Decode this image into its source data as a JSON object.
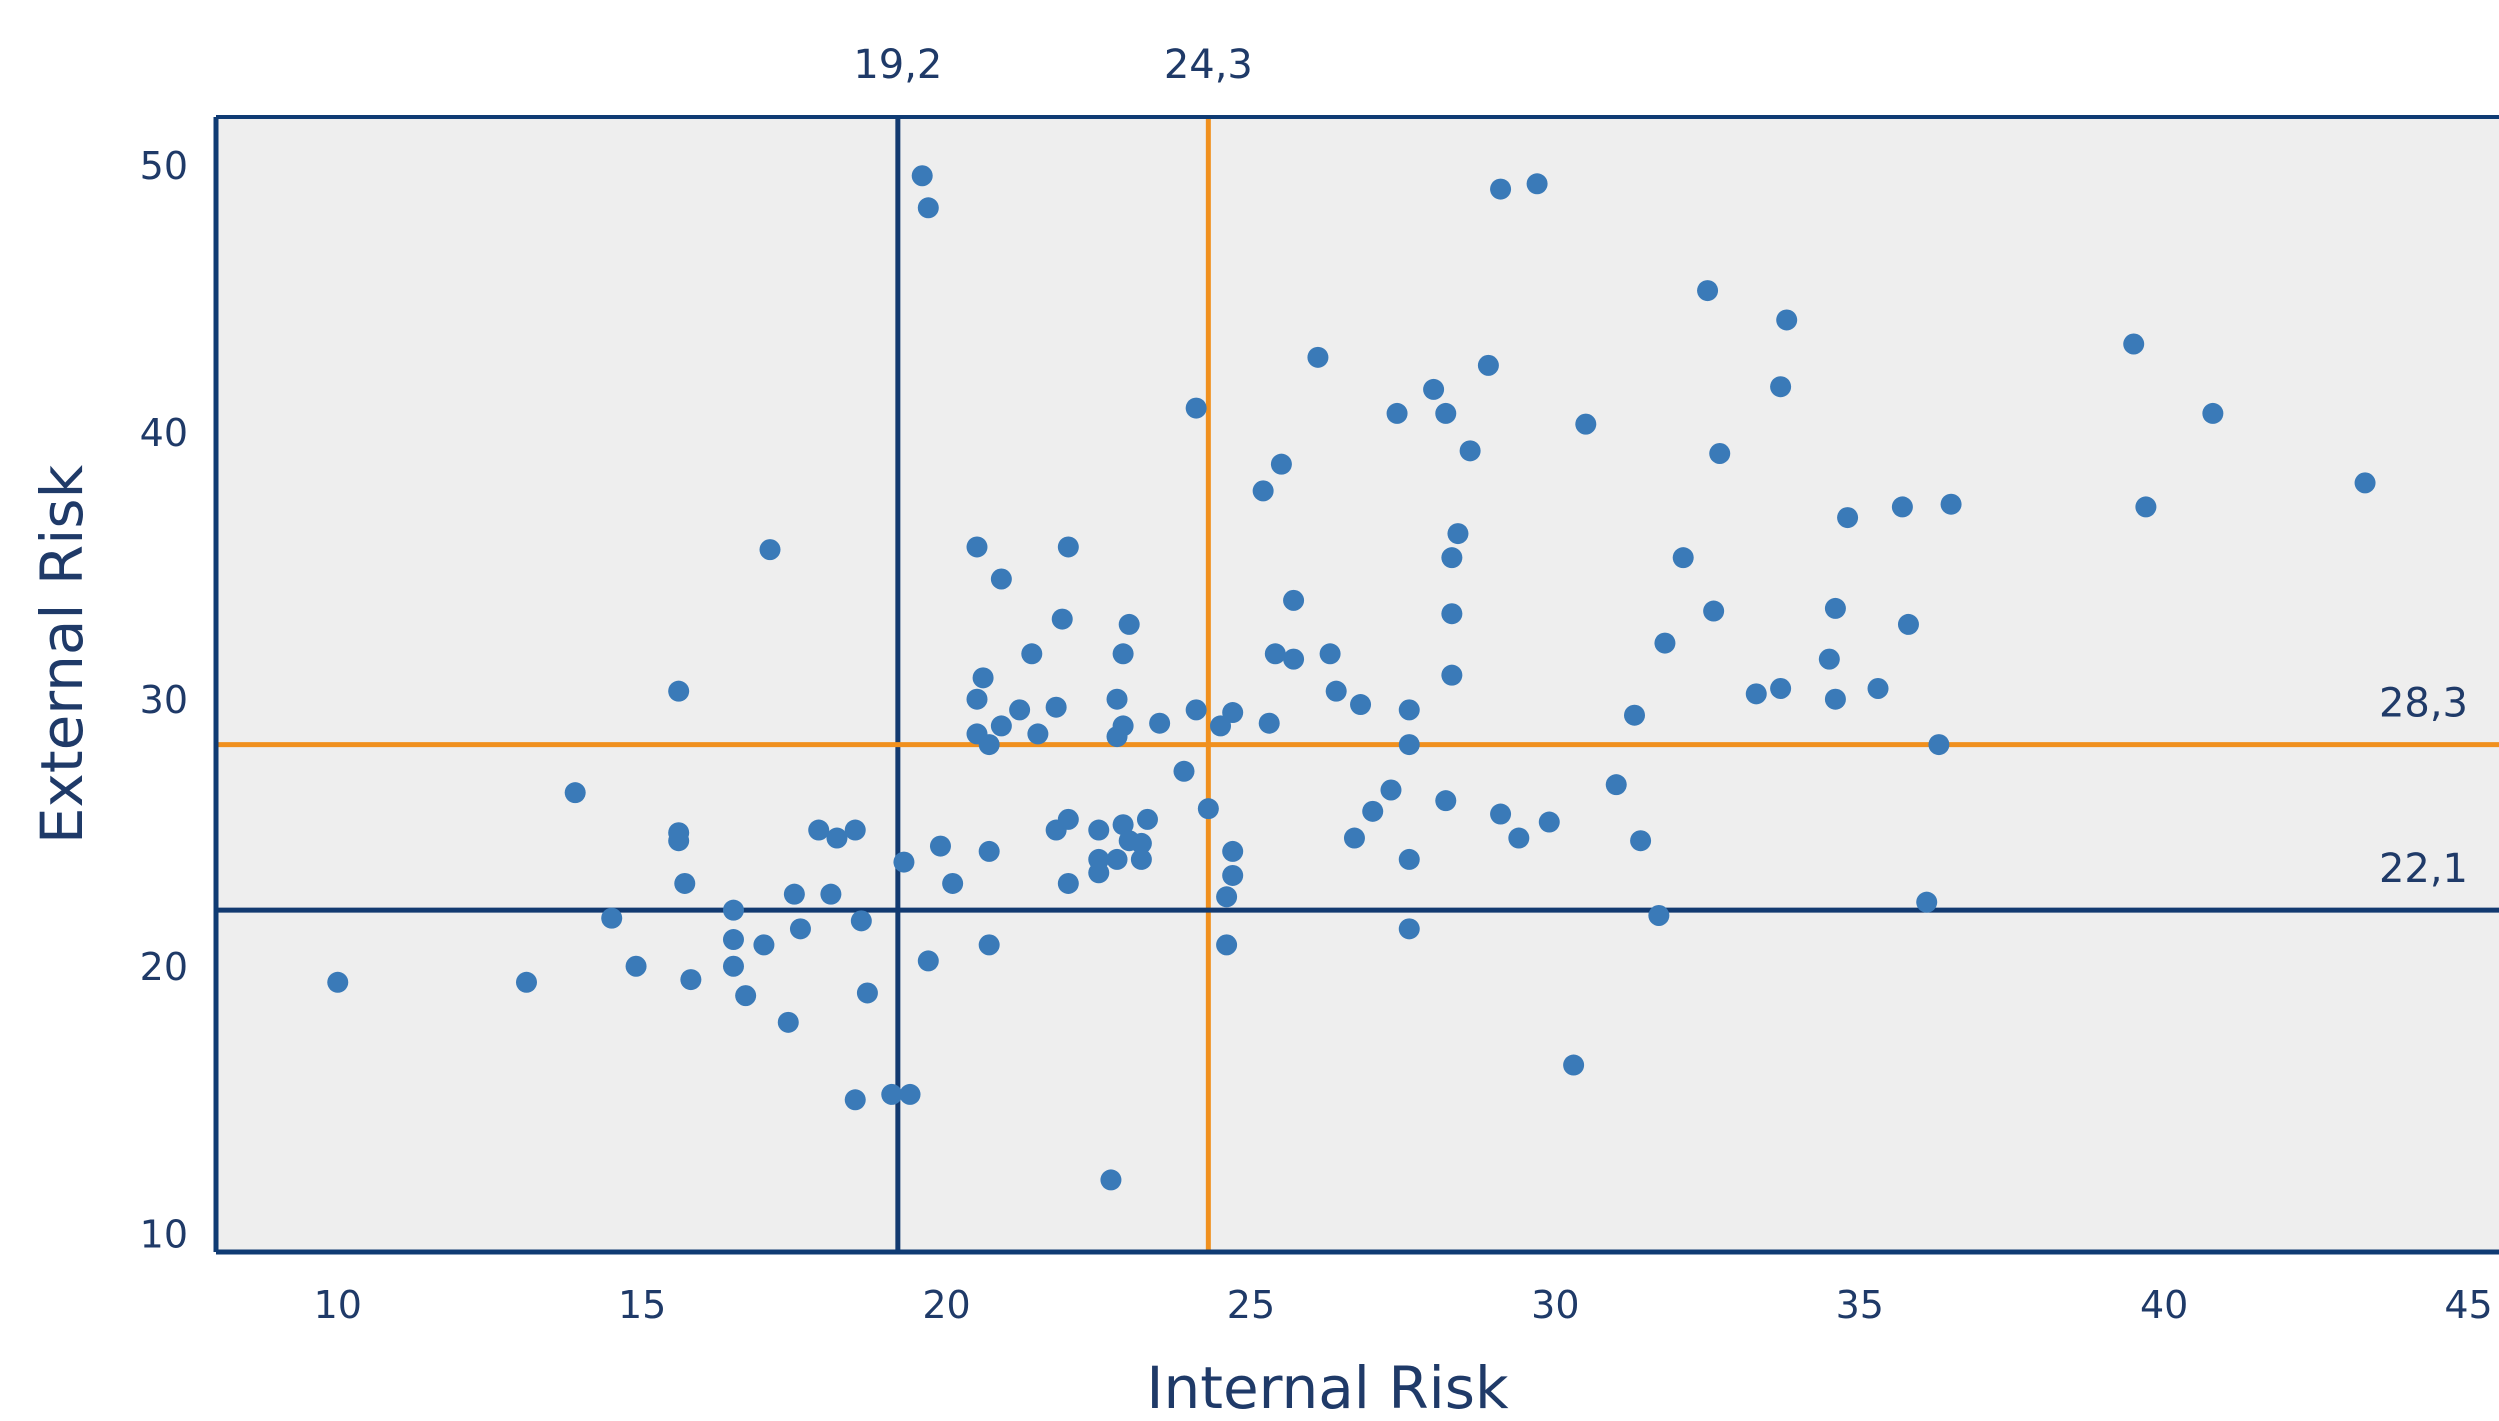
{
  "chart_data": {
    "type": "scatter",
    "title": "",
    "xlabel": "Internal Risk",
    "ylabel": "External Risk",
    "xlim": [
      8,
      45.5
    ],
    "ylim": [
      9.3,
      51.8
    ],
    "xticks": [
      10,
      15,
      20,
      25,
      30,
      35,
      40,
      45
    ],
    "yticks": [
      10,
      20,
      30,
      40,
      50
    ],
    "grid": false,
    "colors": {
      "plot_bg": "#eeeeee",
      "axis": "#0f3b73",
      "points": "#3a7ab8",
      "navy_line": "#123a70",
      "orange_line": "#f0901e",
      "text": "#1f3a68"
    },
    "reference_lines": [
      {
        "orientation": "vertical",
        "value": 19.2,
        "label": "19,2",
        "color": "#123a70"
      },
      {
        "orientation": "vertical",
        "value": 24.3,
        "label": "24,3",
        "color": "#f0901e"
      },
      {
        "orientation": "horizontal",
        "value": 28.3,
        "label": "28,3",
        "color": "#f0901e"
      },
      {
        "orientation": "horizontal",
        "value": 22.1,
        "label": "22,1",
        "color": "#123a70"
      }
    ],
    "points": [
      [
        10.0,
        19.4
      ],
      [
        13.1,
        19.4
      ],
      [
        13.9,
        26.5
      ],
      [
        14.5,
        21.8
      ],
      [
        14.9,
        20.0
      ],
      [
        15.6,
        30.3
      ],
      [
        15.6,
        25.0
      ],
      [
        15.6,
        24.7
      ],
      [
        15.7,
        23.1
      ],
      [
        15.8,
        19.5
      ],
      [
        16.5,
        22.1
      ],
      [
        16.5,
        21.0
      ],
      [
        16.5,
        20.0
      ],
      [
        16.7,
        18.9
      ],
      [
        17.0,
        20.8
      ],
      [
        17.1,
        35.6
      ],
      [
        17.4,
        17.9
      ],
      [
        17.5,
        22.7
      ],
      [
        17.6,
        21.4
      ],
      [
        17.9,
        25.1
      ],
      [
        18.1,
        22.7
      ],
      [
        18.2,
        24.8
      ],
      [
        18.5,
        25.1
      ],
      [
        18.5,
        15.0
      ],
      [
        18.6,
        21.7
      ],
      [
        18.7,
        19.0
      ],
      [
        19.1,
        15.2
      ],
      [
        19.3,
        23.9
      ],
      [
        19.4,
        15.2
      ],
      [
        19.6,
        49.6
      ],
      [
        19.7,
        48.4
      ],
      [
        19.7,
        20.2
      ],
      [
        19.9,
        24.5
      ],
      [
        20.1,
        23.1
      ],
      [
        20.5,
        35.7
      ],
      [
        20.5,
        30.0
      ],
      [
        20.5,
        28.7
      ],
      [
        20.6,
        30.8
      ],
      [
        20.7,
        28.3
      ],
      [
        20.7,
        24.3
      ],
      [
        20.7,
        20.8
      ],
      [
        20.9,
        34.5
      ],
      [
        20.9,
        29.0
      ],
      [
        21.2,
        29.6
      ],
      [
        21.4,
        31.7
      ],
      [
        21.5,
        28.7
      ],
      [
        21.8,
        29.7
      ],
      [
        21.8,
        25.1
      ],
      [
        21.9,
        33.0
      ],
      [
        22.0,
        35.7
      ],
      [
        22.0,
        25.5
      ],
      [
        22.0,
        23.1
      ],
      [
        22.5,
        25.1
      ],
      [
        22.5,
        24.0
      ],
      [
        22.5,
        23.5
      ],
      [
        22.8,
        30.0
      ],
      [
        22.8,
        28.6
      ],
      [
        22.8,
        24.0
      ],
      [
        22.9,
        31.7
      ],
      [
        22.9,
        29.0
      ],
      [
        22.9,
        25.3
      ],
      [
        22.7,
        12.0
      ],
      [
        23.0,
        32.8
      ],
      [
        23.0,
        24.7
      ],
      [
        23.2,
        24.0
      ],
      [
        23.2,
        24.6
      ],
      [
        23.3,
        25.5
      ],
      [
        23.5,
        29.1
      ],
      [
        23.9,
        27.3
      ],
      [
        24.1,
        40.9
      ],
      [
        24.1,
        29.6
      ],
      [
        24.3,
        25.9
      ],
      [
        24.5,
        29.0
      ],
      [
        24.6,
        22.6
      ],
      [
        24.6,
        20.8
      ],
      [
        24.7,
        29.5
      ],
      [
        24.7,
        24.3
      ],
      [
        24.7,
        23.4
      ],
      [
        25.2,
        37.8
      ],
      [
        25.3,
        29.1
      ],
      [
        25.4,
        31.7
      ],
      [
        25.5,
        38.8
      ],
      [
        25.7,
        33.7
      ],
      [
        25.7,
        31.5
      ],
      [
        26.1,
        42.8
      ],
      [
        26.3,
        31.7
      ],
      [
        26.4,
        30.3
      ],
      [
        26.7,
        24.8
      ],
      [
        26.8,
        29.8
      ],
      [
        27.0,
        25.8
      ],
      [
        27.3,
        26.6
      ],
      [
        27.4,
        40.7
      ],
      [
        27.6,
        29.6
      ],
      [
        27.6,
        28.3
      ],
      [
        27.6,
        24.0
      ],
      [
        27.6,
        21.4
      ],
      [
        28.0,
        41.6
      ],
      [
        28.2,
        40.7
      ],
      [
        28.2,
        26.2
      ],
      [
        28.3,
        35.3
      ],
      [
        28.3,
        33.2
      ],
      [
        28.3,
        30.9
      ],
      [
        28.4,
        36.2
      ],
      [
        28.6,
        39.3
      ],
      [
        28.9,
        42.5
      ],
      [
        29.1,
        49.1
      ],
      [
        29.1,
        25.7
      ],
      [
        29.4,
        24.8
      ],
      [
        29.7,
        49.3
      ],
      [
        29.9,
        25.4
      ],
      [
        30.3,
        16.3
      ],
      [
        30.5,
        40.3
      ],
      [
        31.0,
        26.8
      ],
      [
        31.3,
        29.4
      ],
      [
        31.4,
        24.7
      ],
      [
        31.7,
        21.9
      ],
      [
        31.8,
        32.1
      ],
      [
        32.1,
        35.3
      ],
      [
        32.5,
        45.3
      ],
      [
        32.6,
        33.3
      ],
      [
        32.7,
        39.2
      ],
      [
        33.3,
        30.2
      ],
      [
        33.7,
        41.7
      ],
      [
        33.7,
        30.4
      ],
      [
        33.8,
        44.2
      ],
      [
        34.5,
        31.5
      ],
      [
        34.6,
        33.4
      ],
      [
        34.6,
        30.0
      ],
      [
        34.8,
        36.8
      ],
      [
        35.3,
        30.4
      ],
      [
        35.7,
        37.2
      ],
      [
        35.8,
        32.8
      ],
      [
        36.1,
        22.4
      ],
      [
        36.3,
        28.3
      ],
      [
        36.5,
        37.3
      ],
      [
        39.5,
        43.3
      ],
      [
        39.7,
        37.2
      ],
      [
        40.8,
        40.7
      ],
      [
        43.3,
        38.1
      ]
    ]
  }
}
